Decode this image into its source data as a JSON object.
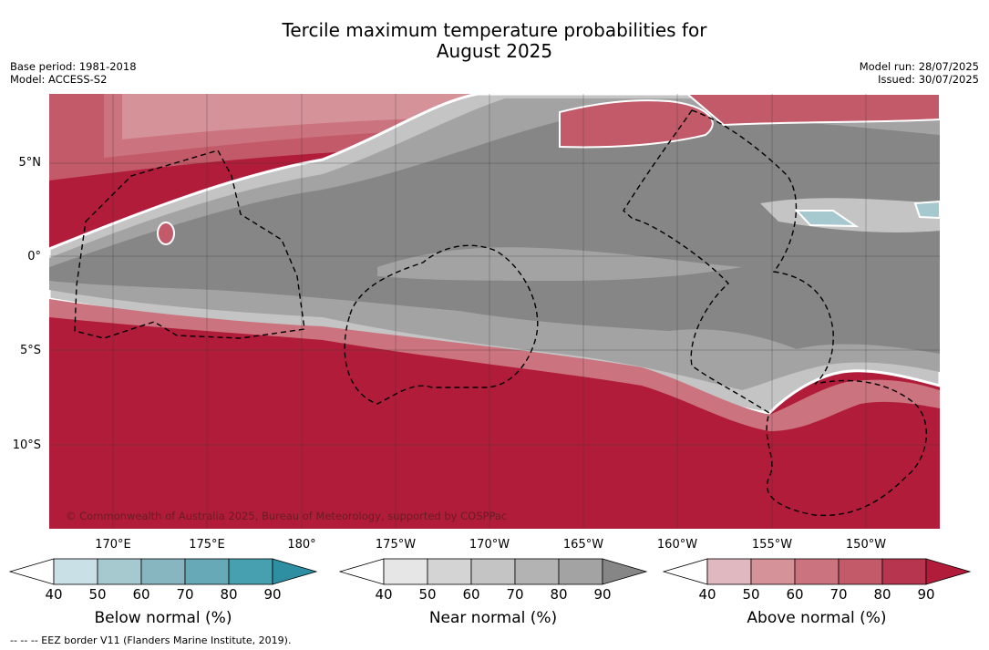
{
  "title": {
    "line1": "Tercile maximum temperature probabilities for",
    "line2": "August 2025"
  },
  "meta": {
    "base_period": "Base period: 1981-2018",
    "model": "Model: ACCESS-S2",
    "model_run": "Model run: 28/07/2025",
    "issued": "Issued: 30/07/2025"
  },
  "map": {
    "lat_labels": [
      "5°N",
      "0°",
      "5°S",
      "10°S"
    ],
    "lon_labels": [
      "170°E",
      "175°E",
      "180°",
      "175°W",
      "170°W",
      "165°W",
      "160°W",
      "155°W",
      "150°W"
    ],
    "copyright": "© Commonwealth of Australia 2025, Bureau of Meteorology, supported by COSPPac",
    "colors": {
      "above_dominant": "#b01c39",
      "near_dominant": "#868686",
      "near_mid": "#a3a3a3",
      "near_light": "#c4c4c4",
      "below_patch": "#a6c8cf"
    }
  },
  "colorbars": [
    {
      "title": "Below normal (%)",
      "ticks": [
        "40",
        "50",
        "60",
        "70",
        "80",
        "90"
      ],
      "colors": [
        "#c9e0e6",
        "#a6c8cf",
        "#87b6c0",
        "#68a9b7",
        "#47a0b0",
        "#2d8fa1"
      ]
    },
    {
      "title": "Near normal (%)",
      "ticks": [
        "40",
        "50",
        "60",
        "70",
        "80",
        "90"
      ],
      "colors": [
        "#e6e6e6",
        "#d4d4d4",
        "#c4c4c4",
        "#b3b3b3",
        "#a3a3a3",
        "#868686"
      ]
    },
    {
      "title": "Above normal (%)",
      "ticks": [
        "40",
        "50",
        "60",
        "70",
        "80",
        "90"
      ],
      "colors": [
        "#e0b8bf",
        "#d59299",
        "#cb737e",
        "#c25a69",
        "#b83550",
        "#b01c39"
      ]
    }
  ],
  "footnote": "--  --  -- EEZ border V11 (Flanders Marine Institute, 2019)."
}
